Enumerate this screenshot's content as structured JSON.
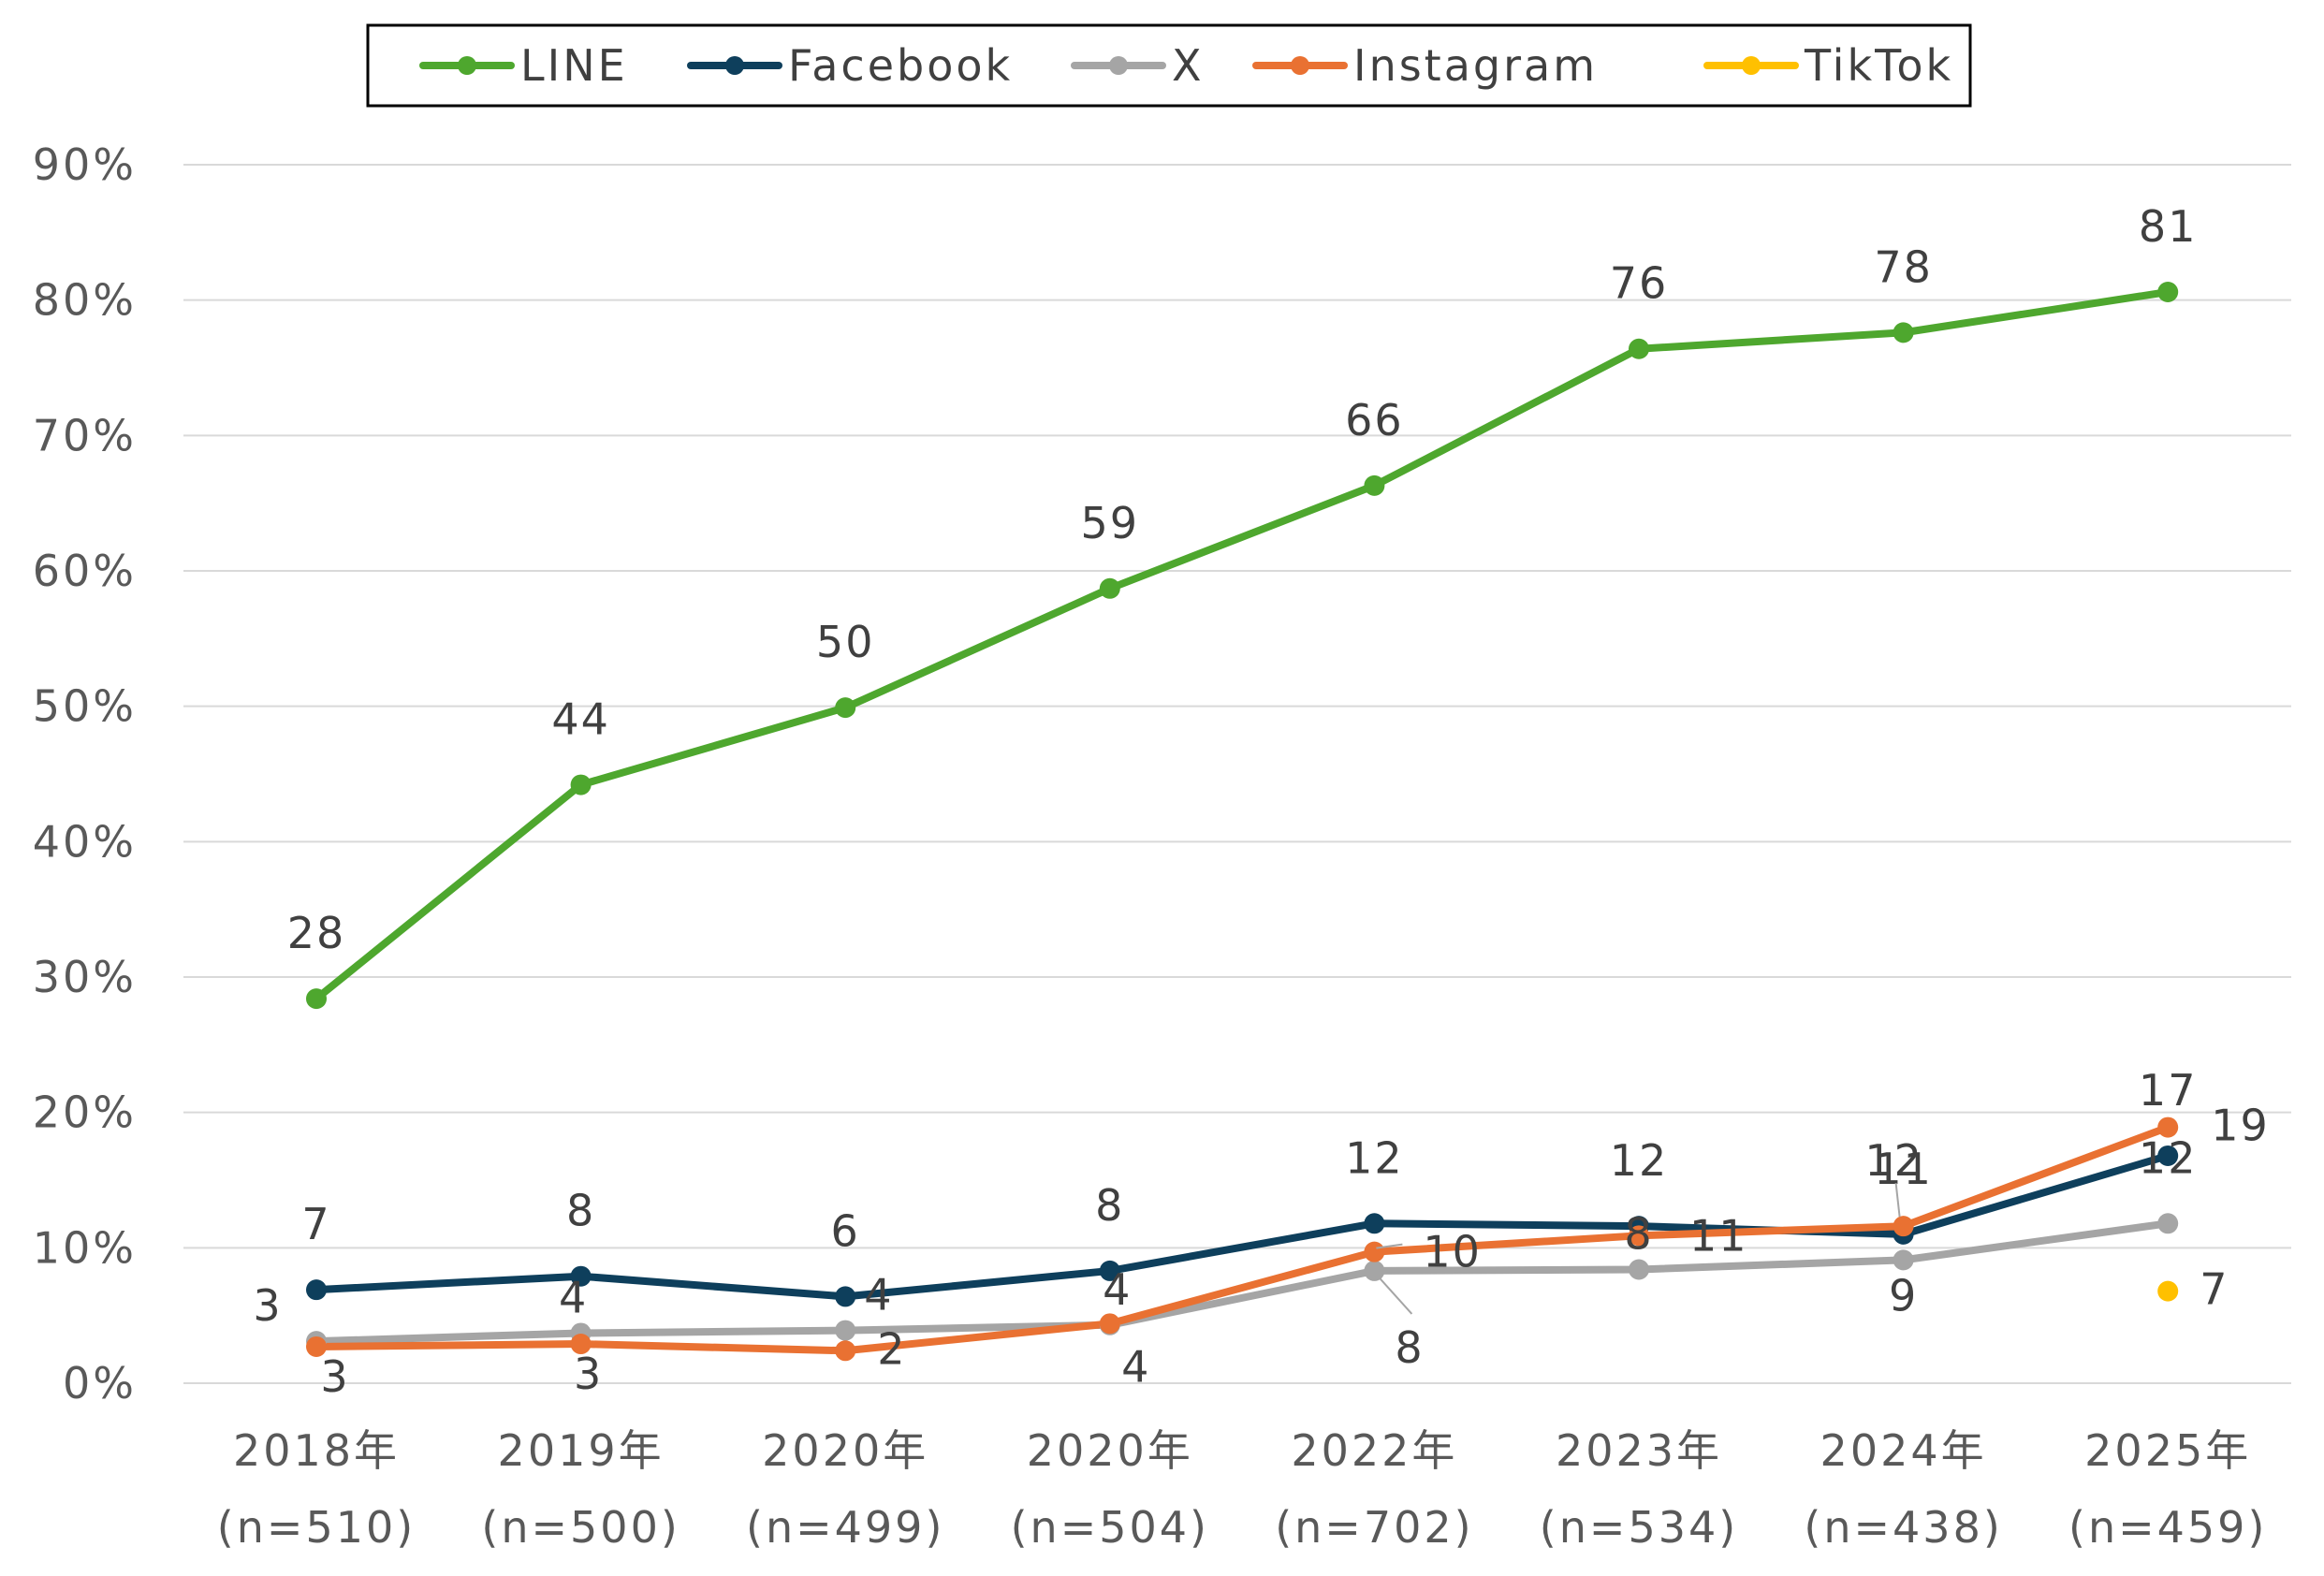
{
  "chart_data": {
    "type": "line",
    "categories": [
      [
        "2018年",
        "(n=510)"
      ],
      [
        "2019年",
        "(n=500)"
      ],
      [
        "2020年",
        "(n=499)"
      ],
      [
        "2020年",
        "(n=504)"
      ],
      [
        "2022年",
        "(n=702)"
      ],
      [
        "2023年",
        "(n=534)"
      ],
      [
        "2024年",
        "(n=438)"
      ],
      [
        "2025年",
        "(n=459)"
      ]
    ],
    "y_ticks": [
      "0%",
      "10%",
      "20%",
      "30%",
      "40%",
      "50%",
      "60%",
      "70%",
      "80%",
      "90%"
    ],
    "ylim": [
      0,
      90
    ],
    "grid": true,
    "legend_position": "top",
    "series": [
      {
        "name": "LINE",
        "color": "#4EA72E",
        "values": [
          28.4,
          44.2,
          49.9,
          58.7,
          66.3,
          76.4,
          77.6,
          80.6
        ],
        "labels": [
          "28",
          "44",
          "50",
          "59",
          "66",
          "76",
          "78",
          "81"
        ]
      },
      {
        "name": "Facebook",
        "color": "#0E3F5C",
        "values": [
          6.9,
          7.9,
          6.4,
          8.3,
          11.8,
          11.6,
          11.0,
          16.8
        ],
        "labels": [
          "7",
          "8",
          "6",
          "8",
          "12",
          "12",
          "11",
          "17"
        ]
      },
      {
        "name": "X",
        "color": "#A5A5A5",
        "values": [
          3.1,
          3.7,
          3.9,
          4.3,
          8.3,
          8.4,
          9.1,
          11.8
        ],
        "labels": [
          "3",
          "4",
          "4",
          "4",
          "8",
          "8",
          "9",
          "12"
        ]
      },
      {
        "name": "Instagram",
        "color": "#E97132",
        "values": [
          2.7,
          2.9,
          2.4,
          4.4,
          9.7,
          10.9,
          11.6,
          18.9
        ],
        "labels": [
          "3",
          "3",
          "2",
          "4",
          "10",
          "11",
          "12",
          "19"
        ]
      },
      {
        "name": "TikTok",
        "color": "#FFC000",
        "values": [
          null,
          null,
          null,
          null,
          null,
          null,
          null,
          6.8
        ],
        "labels": [
          null,
          null,
          null,
          null,
          null,
          null,
          null,
          "7"
        ]
      }
    ]
  }
}
